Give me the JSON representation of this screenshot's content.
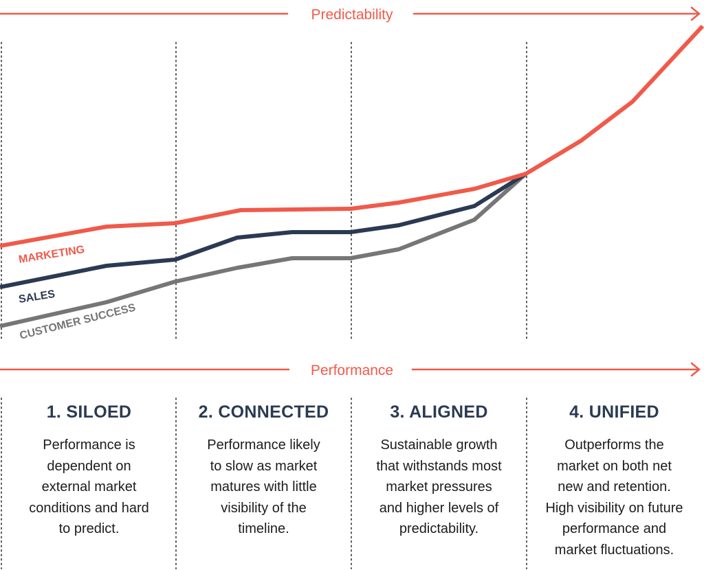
{
  "axes": {
    "top_label": "Predictability",
    "bottom_label": "Performance"
  },
  "colors": {
    "marketing": "#f05a4a",
    "sales": "#2b3a52",
    "customer_success": "#767676",
    "axis": "#f05a4a",
    "divider": "#555555"
  },
  "series": [
    {
      "key": "marketing",
      "name": "MARKETING",
      "points": [
        [
          0,
          358
        ],
        [
          155,
          330
        ],
        [
          255,
          325
        ],
        [
          350,
          306
        ],
        [
          510,
          304
        ],
        [
          580,
          295
        ],
        [
          690,
          275
        ],
        [
          765,
          253
        ],
        [
          845,
          205
        ],
        [
          920,
          148
        ],
        [
          1022,
          38
        ]
      ]
    },
    {
      "key": "sales",
      "name": "SALES",
      "points": [
        [
          0,
          418
        ],
        [
          155,
          387
        ],
        [
          255,
          378
        ],
        [
          345,
          346
        ],
        [
          425,
          338
        ],
        [
          510,
          338
        ],
        [
          580,
          328
        ],
        [
          690,
          300
        ],
        [
          765,
          253
        ]
      ]
    },
    {
      "key": "customer_success",
      "name": "CUSTOMER SUCCESS",
      "points": [
        [
          0,
          475
        ],
        [
          155,
          440
        ],
        [
          255,
          410
        ],
        [
          345,
          390
        ],
        [
          425,
          376
        ],
        [
          510,
          376
        ],
        [
          580,
          363
        ],
        [
          690,
          320
        ],
        [
          765,
          253
        ]
      ]
    }
  ],
  "stages": [
    {
      "title": "1. SILOED",
      "description": "Performance is\ndependent on\nexternal market\nconditions and hard\nto predict."
    },
    {
      "title": "2. CONNECTED",
      "description": "Performance likely\nto slow as market\nmatures with little\nvisibility of the\ntimeline."
    },
    {
      "title": "3. ALIGNED",
      "description": "Sustainable growth\nthat withstands most\nmarket pressures\nand higher levels of\npredictability."
    },
    {
      "title": "4. UNIFIED",
      "description": "Outperforms the\nmarket on both net\nnew and retention.\nHigh visibility on future\nperformance and\nmarket fluctuations."
    }
  ]
}
